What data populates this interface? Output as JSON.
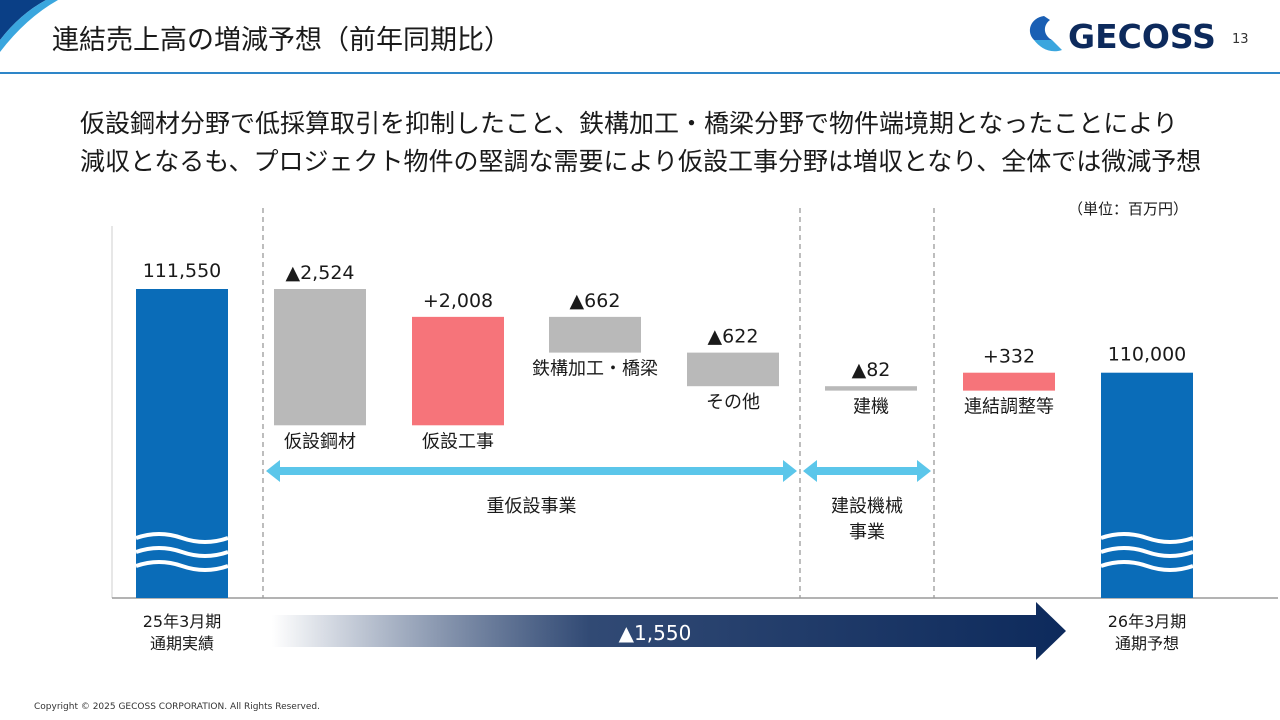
{
  "header": {
    "title": "連結売上高の増減予想（前年同期比）",
    "logo_text": "GECOSS",
    "page_number": "13"
  },
  "headline": {
    "line1": "仮設鋼材分野で低採算取引を抑制したこと、鉄構加工・橋梁分野で物件端境期となったことにより",
    "line2": "減収となるも、プロジェクト物件の堅調な需要により仮設工事分野は増収となり、全体では微減予想"
  },
  "unit_label": "（単位：百万円）",
  "colors": {
    "bar_blue": "#0a6cb8",
    "decrease_gray": "#b9b9b9",
    "increase_red": "#f6747a",
    "arrow_cyan": "#5bc6ea",
    "navy": "#0d2a5c",
    "rule_blue": "#2e86c8"
  },
  "chart_data": {
    "type": "waterfall",
    "title": "連結売上高の増減予想（前年同期比）",
    "unit": "百万円",
    "start": {
      "value": 111550,
      "label": "111,550",
      "category": [
        "25年3月期",
        "通期実績"
      ]
    },
    "end": {
      "value": 110000,
      "label": "110,000",
      "category": [
        "26年3月期",
        "通期予想"
      ]
    },
    "steps": [
      {
        "name": "仮設鋼材",
        "value": -2524,
        "label": "▲2,524"
      },
      {
        "name": "仮設工事",
        "value": 2008,
        "label": "+2,008"
      },
      {
        "name": "鉄構加工・橋梁",
        "value": -662,
        "label": "▲662"
      },
      {
        "name": "その他",
        "value": -622,
        "label": "▲622"
      },
      {
        "name": "建機",
        "value": -82,
        "label": "▲82"
      },
      {
        "name": "連結調整等",
        "value": 332,
        "label": "+332"
      }
    ],
    "segments": [
      {
        "name": "重仮設事業",
        "lines": [
          "重仮設事業"
        ],
        "from_step": 0,
        "to_step": 3
      },
      {
        "name": "建設機械事業",
        "lines": [
          "建設機械",
          "事業"
        ],
        "from_step": 4,
        "to_step": 4
      }
    ],
    "total_change": {
      "value": -1550,
      "label": "▲1,550"
    },
    "axis_break": true,
    "ylim": [
      106500,
      112000
    ]
  },
  "footer": {
    "copyright": "Copyright © 2025 GECOSS CORPORATION. All Rights Reserved."
  }
}
